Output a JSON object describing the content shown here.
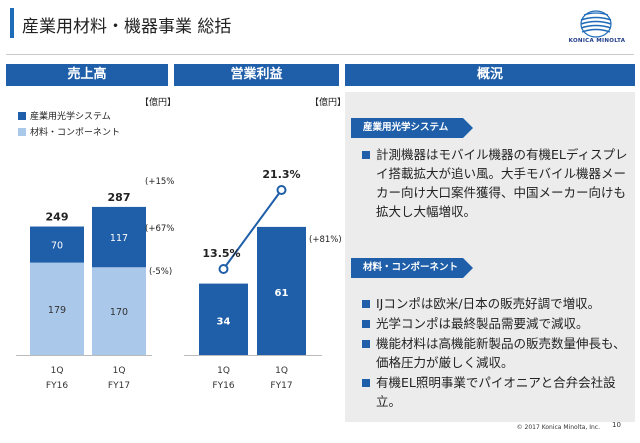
{
  "header": {
    "title": "産業用材料・機器事業 総括"
  },
  "brand": {
    "name": "KONICA MINOLTA",
    "color": "#1e3a8a"
  },
  "panels": {
    "sales": {
      "label": "売上高",
      "unit": "【億円】"
    },
    "profit": {
      "label": "営業利益",
      "unit": "【億円】"
    },
    "overview": {
      "label": "概況"
    }
  },
  "legend": [
    {
      "label": "産業用光学システム",
      "color": "#1f5ea8"
    },
    {
      "label": "材料・コンポーネント",
      "color": "#a9c8ea"
    }
  ],
  "chart_data": [
    {
      "type": "bar",
      "title": "売上高",
      "unit": "【億円】",
      "categories": [
        [
          "1Q",
          "FY16"
        ],
        [
          "1Q",
          "FY17"
        ]
      ],
      "series": [
        {
          "name": "材料・コンポーネント",
          "values": [
            179,
            170
          ],
          "color": "#a9c8ea"
        },
        {
          "name": "産業用光学システム",
          "values": [
            70,
            117
          ],
          "color": "#1f5ea8"
        }
      ],
      "totals": [
        249,
        287
      ],
      "annotations": {
        "total": "(+15%)",
        "optical": "(+67%)",
        "materials": "(-5%)"
      },
      "ylim": [
        0,
        300
      ]
    },
    {
      "type": "bar",
      "title": "営業利益",
      "unit": "【億円】",
      "categories": [
        [
          "1Q",
          "FY16"
        ],
        [
          "1Q",
          "FY17"
        ]
      ],
      "values": [
        34,
        61
      ],
      "color": "#1f5ea8",
      "annotations": {
        "growth": "(+81%)"
      },
      "ylim": [
        0,
        70
      ]
    },
    {
      "type": "line",
      "values": [
        13.5,
        21.3
      ],
      "labels": [
        "13.5%",
        "21.3%"
      ],
      "color": "#1f5ea8",
      "ylim": [
        0,
        30
      ]
    }
  ],
  "overview": {
    "optical": {
      "title": "産業用光学システム",
      "bullets": [
        "計測機器はモバイル機器の有機ELディスプレイ搭載拡大が追い風。大手モバイル機器メーカー向け大口案件獲得、中国メーカー向けも拡大し大幅増収。"
      ]
    },
    "materials": {
      "title": "材料・コンポーネント",
      "bullets": [
        "IJコンポは欧米/日本の販売好調で増収。",
        "光学コンポは最終製品需要減で減収。",
        "機能材料は高機能新製品の販売数量伸長も、価格圧力が厳しく減収。",
        "有機EL照明事業でパイオニアと合弁会社設立。"
      ]
    }
  },
  "footer": {
    "copyright": "© 2017 Konica Minolta, Inc.",
    "page": "10"
  }
}
